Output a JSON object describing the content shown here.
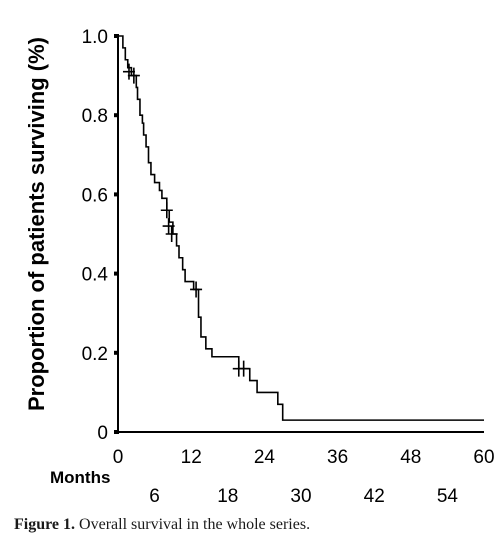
{
  "chart_data": {
    "type": "line",
    "subtype": "kaplan-meier step curve",
    "ylabel": "Proportion of patients surviving (%)",
    "xlabel": "Months",
    "xlim": [
      0,
      60
    ],
    "ylim": [
      0,
      1.0
    ],
    "x_ticks": [
      0,
      12,
      24,
      36,
      48,
      60
    ],
    "x_ticks_secondary": [
      6,
      18,
      30,
      42,
      54
    ],
    "y_ticks": [
      "0",
      "0.2",
      "0.4",
      "0.6",
      "0.8",
      "1.0"
    ],
    "y_tick_values": [
      0,
      0.2,
      0.4,
      0.6,
      0.8,
      1.0
    ],
    "grid": false,
    "line_color": "#000000",
    "series": [
      {
        "steps": [
          [
            0,
            1.0
          ],
          [
            0.8,
            0.97
          ],
          [
            1.2,
            0.94
          ],
          [
            1.6,
            0.92
          ],
          [
            2.2,
            0.9
          ],
          [
            3.0,
            0.87
          ],
          [
            3.2,
            0.84
          ],
          [
            3.6,
            0.8
          ],
          [
            4.0,
            0.78
          ],
          [
            4.2,
            0.75
          ],
          [
            4.6,
            0.72
          ],
          [
            5.0,
            0.68
          ],
          [
            5.4,
            0.65
          ],
          [
            6.0,
            0.63
          ],
          [
            6.8,
            0.61
          ],
          [
            7.2,
            0.59
          ],
          [
            8.0,
            0.56
          ],
          [
            8.4,
            0.53
          ],
          [
            9.0,
            0.5
          ],
          [
            9.6,
            0.47
          ],
          [
            10.0,
            0.44
          ],
          [
            10.6,
            0.41
          ],
          [
            11.0,
            0.38
          ],
          [
            12.4,
            0.36
          ],
          [
            13.2,
            0.29
          ],
          [
            13.6,
            0.24
          ],
          [
            14.4,
            0.21
          ],
          [
            15.4,
            0.19
          ],
          [
            18.4,
            0.19
          ],
          [
            19.8,
            0.16
          ],
          [
            21.6,
            0.13
          ],
          [
            22.8,
            0.1
          ],
          [
            26.2,
            0.07
          ],
          [
            27.0,
            0.03
          ],
          [
            60,
            0.03
          ]
        ],
        "censored": [
          [
            1.8,
            0.91
          ],
          [
            2.6,
            0.9
          ],
          [
            8.0,
            0.56
          ],
          [
            8.3,
            0.52
          ],
          [
            8.8,
            0.5
          ],
          [
            12.8,
            0.36
          ],
          [
            19.8,
            0.16
          ],
          [
            20.6,
            0.16
          ]
        ]
      }
    ]
  },
  "caption": {
    "label": "Figure 1.",
    "text": " Overall survival in the whole series."
  }
}
